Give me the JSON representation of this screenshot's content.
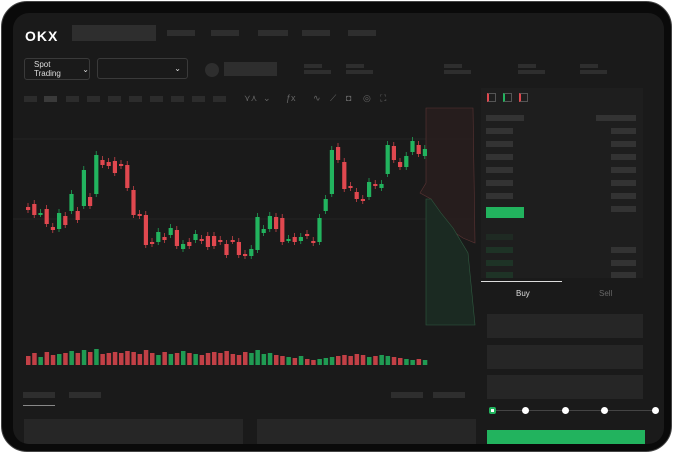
{
  "header": {
    "logo": "OKX"
  },
  "toolbar": {
    "market_selector": "Spot Trading",
    "market_selector_icon": "chevron-down-icon",
    "pair_selector_icon": "chevron-down-icon"
  },
  "chart_tools": [
    "line-icon",
    "candle-icon",
    "indicator-icon",
    "wave-icon",
    "ruler-icon",
    "camera-icon",
    "settings-icon",
    "fullscreen-icon"
  ],
  "order_book": {
    "views": [
      "both-sides-icon",
      "bids-only-icon",
      "asks-only-icon"
    ]
  },
  "trade": {
    "tabs": [
      {
        "label": "Buy",
        "active": true
      },
      {
        "label": "Sell",
        "active": false
      }
    ],
    "slider_percent": 0,
    "colors": {
      "buy": "#22b35e",
      "sell": "#e0484f"
    }
  },
  "chart_data": {
    "type": "candlestick",
    "candles": [
      [
        55,
        52
      ],
      [
        58,
        47
      ],
      [
        48,
        49
      ],
      [
        53,
        38
      ],
      [
        35,
        32
      ],
      [
        33,
        49
      ],
      [
        46,
        37
      ],
      [
        51,
        68
      ],
      [
        51,
        42
      ],
      [
        56,
        92
      ],
      [
        65,
        56
      ],
      [
        68,
        107
      ],
      [
        102,
        97
      ],
      [
        100,
        96
      ],
      [
        101,
        89
      ],
      [
        98,
        96
      ],
      [
        97,
        74
      ],
      [
        72,
        47
      ],
      [
        48,
        46
      ],
      [
        47,
        17
      ],
      [
        20,
        18
      ],
      [
        20,
        30
      ],
      [
        25,
        22
      ],
      [
        27,
        34
      ],
      [
        32,
        16
      ],
      [
        13,
        18
      ],
      [
        20,
        16
      ],
      [
        22,
        28
      ],
      [
        23,
        21
      ],
      [
        26,
        15
      ],
      [
        26,
        16
      ],
      [
        22,
        20
      ],
      [
        18,
        7
      ],
      [
        22,
        21
      ],
      [
        20,
        7
      ],
      [
        8,
        6
      ],
      [
        6,
        13
      ],
      [
        12,
        45
      ],
      [
        29,
        33
      ],
      [
        33,
        46
      ],
      [
        45,
        33
      ],
      [
        44,
        20
      ],
      [
        22,
        23
      ],
      [
        25,
        20
      ],
      [
        21,
        25
      ],
      [
        28,
        26
      ],
      [
        21,
        19
      ],
      [
        20,
        44
      ],
      [
        51,
        63
      ],
      [
        68,
        112
      ],
      [
        115,
        102
      ],
      [
        100,
        73
      ],
      [
        76,
        74
      ],
      [
        70,
        63
      ],
      [
        63,
        61
      ],
      [
        65,
        80
      ],
      [
        78,
        76
      ],
      [
        74,
        78
      ],
      [
        88,
        117
      ],
      [
        116,
        102
      ],
      [
        100,
        95
      ],
      [
        95,
        106
      ],
      [
        110,
        121
      ],
      [
        117,
        108
      ],
      [
        106,
        113
      ]
    ],
    "volumes": [
      9,
      12,
      8,
      13,
      10,
      11,
      12,
      14,
      12,
      15,
      13,
      16,
      11,
      12,
      13,
      12,
      14,
      13,
      11,
      15,
      12,
      10,
      13,
      11,
      12,
      14,
      12,
      11,
      10,
      12,
      13,
      12,
      14,
      11,
      10,
      13,
      12,
      15,
      11,
      12,
      10,
      9,
      8,
      7,
      9,
      6,
      5,
      6,
      7,
      8,
      9,
      10,
      9,
      11,
      10,
      8,
      9,
      10,
      9,
      8,
      7,
      6,
      5,
      6,
      5
    ]
  }
}
